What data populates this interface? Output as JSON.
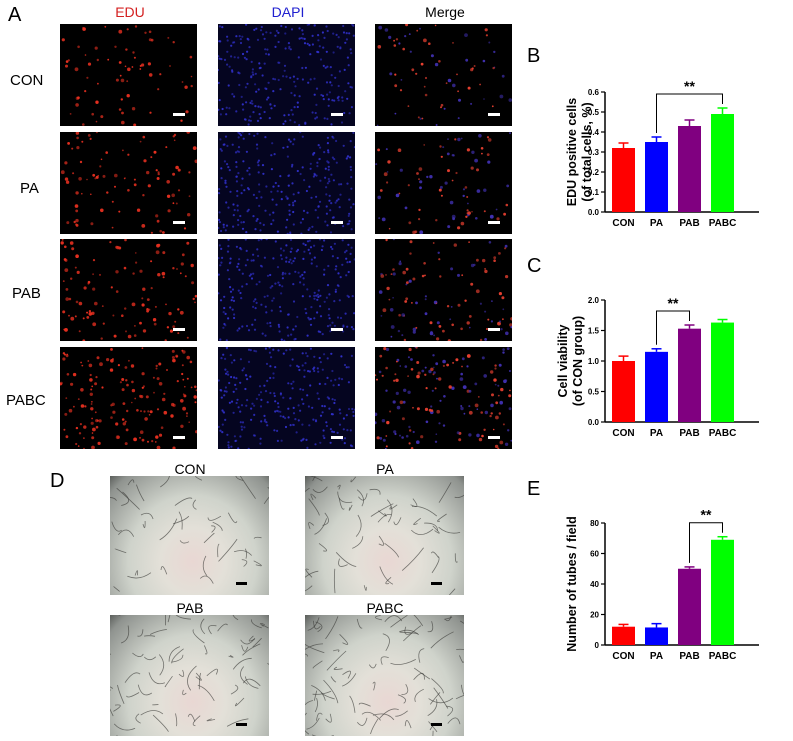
{
  "panel_a": {
    "letter": "A",
    "columns": [
      "EDU",
      "DAPI",
      "Merge"
    ],
    "column_colors": [
      "#d42020",
      "#2020d0",
      "#000000"
    ],
    "rows": [
      "CON",
      "PA",
      "PAB",
      "PABC"
    ]
  },
  "panel_d": {
    "letter": "D",
    "images": [
      "CON",
      "PA",
      "PAB",
      "PABC"
    ]
  },
  "bar_colors": [
    "#ff0000",
    "#0000ff",
    "#800080",
    "#00ff00"
  ],
  "chart_data": [
    {
      "letter": "B",
      "type": "bar",
      "categories": [
        "CON",
        "PA",
        "PAB",
        "PABC"
      ],
      "values": [
        0.32,
        0.35,
        0.43,
        0.49
      ],
      "errors": [
        0.025,
        0.025,
        0.03,
        0.03
      ],
      "ylabel_lines": [
        "EDU positive cells",
        "(of total cells, %)"
      ],
      "ylim": [
        0,
        0.6
      ],
      "yticks": [
        "0.0",
        "0.1",
        "0.2",
        "0.3",
        "0.4",
        "0.5",
        "0.6"
      ],
      "significance": {
        "from": 1,
        "to": 3,
        "label": "**"
      }
    },
    {
      "letter": "C",
      "type": "bar",
      "categories": [
        "CON",
        "PA",
        "PAB",
        "PABC"
      ],
      "values": [
        1.0,
        1.15,
        1.53,
        1.63
      ],
      "errors": [
        0.08,
        0.05,
        0.06,
        0.05
      ],
      "ylabel_lines": [
        "Cell viability",
        "(of  CON  group)"
      ],
      "ylim": [
        0,
        2.0
      ],
      "yticks": [
        "0.0",
        "0.5",
        "1.0",
        "1.5",
        "2.0"
      ],
      "significance": {
        "from": 1,
        "to": 2,
        "label": "**"
      }
    },
    {
      "letter": "E",
      "type": "bar",
      "categories": [
        "CON",
        "PA",
        "PAB",
        "PABC"
      ],
      "values": [
        12,
        11.5,
        50,
        69
      ],
      "errors": [
        1.5,
        2.5,
        1.2,
        2.0
      ],
      "ylabel_lines": [
        "Number of tubes / field"
      ],
      "ylim": [
        0,
        80
      ],
      "yticks": [
        "0",
        "20",
        "40",
        "60",
        "80"
      ],
      "significance": {
        "from": 2,
        "to": 3,
        "label": "**"
      }
    }
  ]
}
